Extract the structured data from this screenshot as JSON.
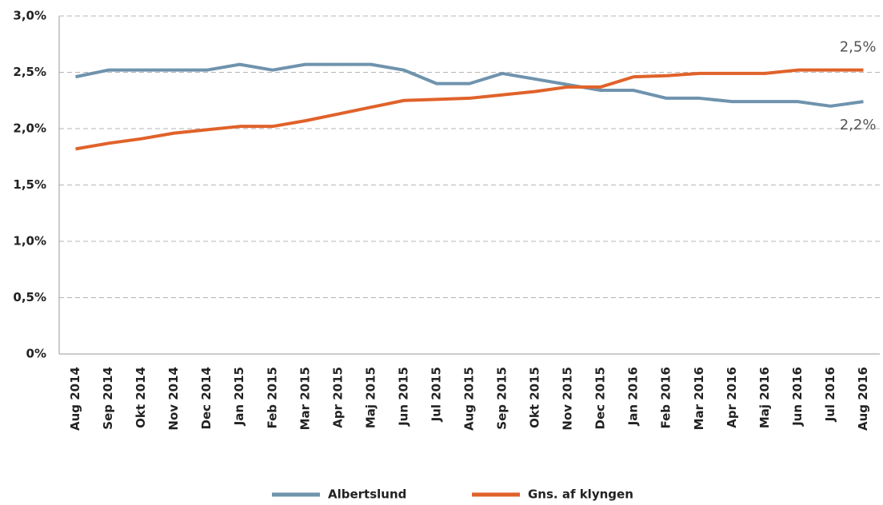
{
  "chart_data": {
    "type": "line",
    "categories": [
      "Aug 2014",
      "Sep 2014",
      "Okt 2014",
      "Nov 2014",
      "Dec 2014",
      "Jan 2015",
      "Feb 2015",
      "Mar 2015",
      "Apr 2015",
      "Maj 2015",
      "Jun 2015",
      "Jul 2015",
      "Aug 2015",
      "Sep 2015",
      "Okt 2015",
      "Nov 2015",
      "Dec 2015",
      "Jan 2016",
      "Feb 2016",
      "Mar 2016",
      "Apr 2016",
      "Maj 2016",
      "Jun 2016",
      "Jul 2016",
      "Aug 2016"
    ],
    "series": [
      {
        "name": "Albertslund",
        "color": "#6f93ad",
        "values": [
          2.46,
          2.52,
          2.52,
          2.52,
          2.52,
          2.57,
          2.52,
          2.57,
          2.57,
          2.57,
          2.52,
          2.4,
          2.4,
          2.49,
          2.44,
          2.39,
          2.34,
          2.34,
          2.27,
          2.27,
          2.24,
          2.24,
          2.24,
          2.2,
          2.24
        ],
        "value_labels": [
          null,
          null,
          null,
          null,
          null,
          null,
          null,
          null,
          null,
          null,
          null,
          null,
          null,
          null,
          null,
          null,
          null,
          null,
          null,
          null,
          null,
          null,
          null,
          null,
          "2,2%"
        ]
      },
      {
        "name": "Gns. af klyngen",
        "color": "#e0622a",
        "values": [
          1.82,
          1.87,
          1.91,
          1.96,
          1.99,
          2.02,
          2.02,
          2.07,
          2.13,
          2.19,
          2.25,
          2.26,
          2.27,
          2.3,
          2.33,
          2.37,
          2.37,
          2.46,
          2.47,
          2.49,
          2.49,
          2.49,
          2.52,
          2.52,
          2.52
        ],
        "value_labels": [
          null,
          null,
          null,
          null,
          null,
          null,
          null,
          null,
          null,
          null,
          null,
          null,
          null,
          null,
          null,
          null,
          null,
          null,
          null,
          null,
          null,
          null,
          null,
          null,
          "2,5%"
        ]
      }
    ],
    "ylim": [
      0,
      3.0
    ],
    "yticks": [
      {
        "value": 0,
        "label": "0%"
      },
      {
        "value": 0.5,
        "label": "0,5%"
      },
      {
        "value": 1.0,
        "label": "1,0%"
      },
      {
        "value": 1.5,
        "label": "1,5%"
      },
      {
        "value": 2.0,
        "label": "2,0%"
      },
      {
        "value": 2.5,
        "label": "2,5%"
      },
      {
        "value": 3.0,
        "label": "3,0%"
      }
    ],
    "grid": true,
    "legend": "bottom"
  }
}
